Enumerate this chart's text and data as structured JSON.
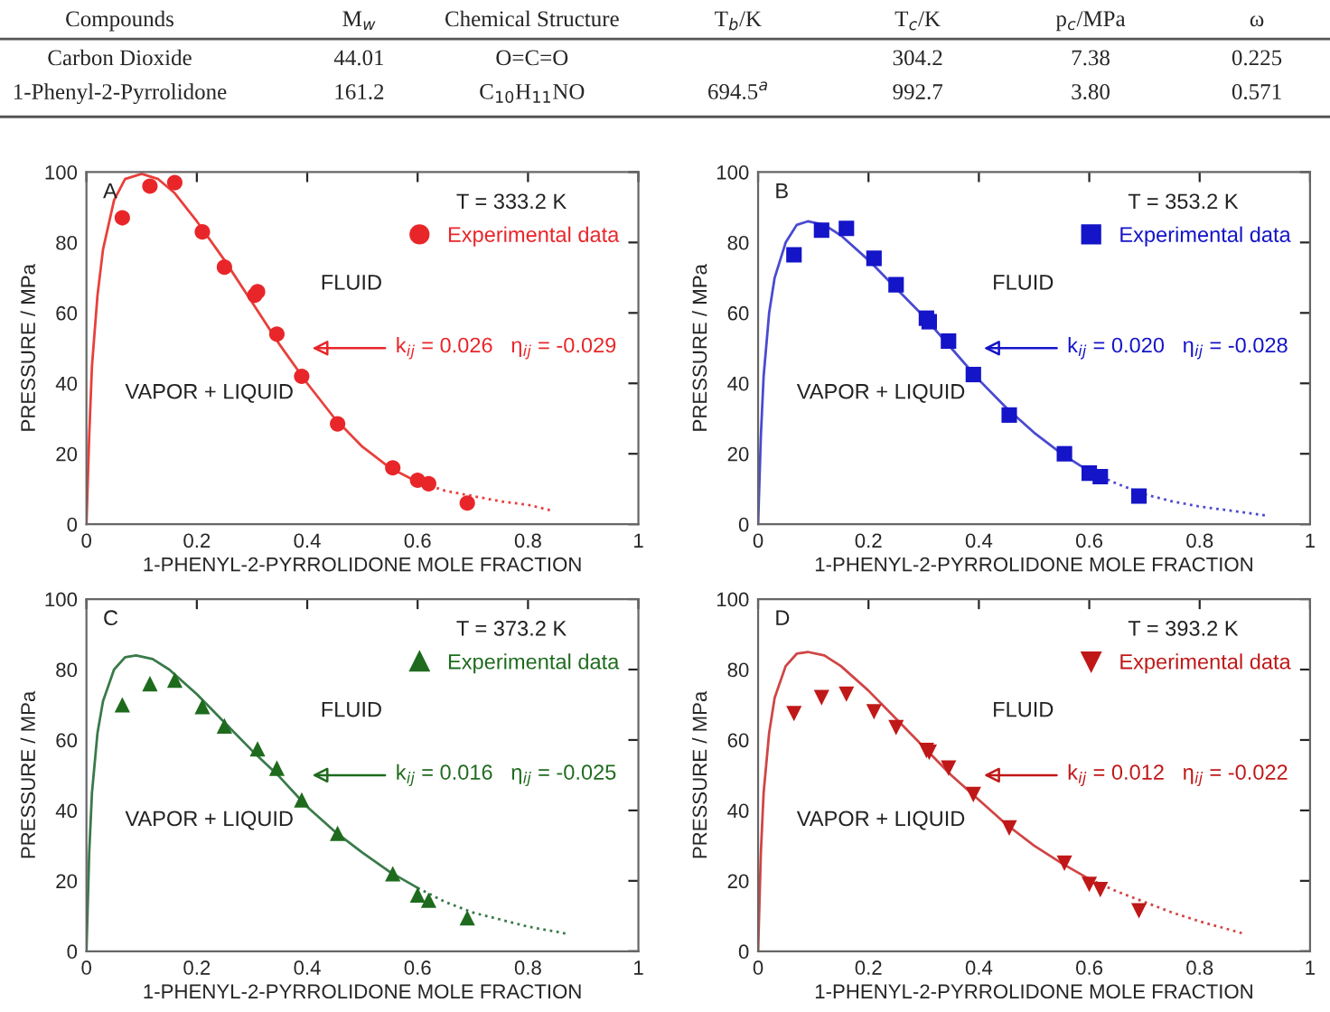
{
  "chart_data": [
    {
      "type": "other",
      "categories": [
        "Compounds",
        "M$_{w}$",
        "Chemical Structure",
        "T$_{b}$/K",
        "T$_{c}$/K",
        "p$_{c}$/MPa",
        "ω"
      ],
      "cell_labels": [
        [
          "Carbon Dioxide",
          "44.01",
          "O=C=O",
          null,
          "304.2",
          "7.38",
          "0.225"
        ],
        [
          "1-Phenyl-2-Pyrrolidone",
          "161.2",
          "C$_{10}$H$_{11}$NO",
          "694.5$^{a}$",
          "992.7",
          "3.80",
          "0.571"
        ]
      ]
    },
    {
      "type": "scatter",
      "xlabel": "1-PHENYL-2-PYRROLIDONE MOLE FRACTION",
      "ylabel": "PRESSURE / MPa",
      "xlim": [
        0,
        1
      ],
      "ylim": [
        0,
        100
      ],
      "xticks": [
        0,
        0.2,
        0.4,
        0.6,
        0.8,
        1
      ],
      "yticks": [
        0,
        20,
        40,
        60,
        80,
        100
      ],
      "grid": false,
      "legend": "top right",
      "annotations": [
        "A",
        "T = 333.2 K",
        "FLUID",
        "VAPOR + LIQUID",
        "k$_{ij}$ = 0.026   η$_{ij}$ = -0.029"
      ],
      "series": [
        {
          "name": "Experimental data",
          "type": "scatter",
          "marker": "circle",
          "color": "#e8262a",
          "x": [
            0.065,
            0.115,
            0.16,
            0.21,
            0.25,
            0.305,
            0.31,
            0.345,
            0.39,
            0.455,
            0.555,
            0.6,
            0.62,
            0.69
          ],
          "values": [
            87,
            96,
            97,
            83,
            73,
            65,
            66,
            54,
            42,
            28.5,
            16,
            12.5,
            11.5,
            6
          ]
        },
        {
          "type": "line",
          "line_style": "solid",
          "color": "#e8403c",
          "x": [
            0,
            0.005,
            0.01,
            0.02,
            0.03,
            0.05,
            0.07,
            0.1,
            0.13,
            0.16,
            0.2,
            0.25,
            0.3,
            0.35,
            0.4,
            0.45,
            0.5,
            0.55,
            0.6
          ],
          "values": [
            0,
            25,
            45,
            65,
            78,
            92,
            98,
            99.5,
            98,
            94,
            86,
            75,
            63,
            51,
            40,
            30,
            22,
            16,
            12
          ]
        },
        {
          "type": "line",
          "line_style": "dotted",
          "color": "#e8403c",
          "x": [
            0.6,
            0.65,
            0.7,
            0.75,
            0.8,
            0.84
          ],
          "values": [
            12,
            9.5,
            8,
            6.5,
            5.5,
            4
          ]
        }
      ]
    },
    {
      "type": "scatter",
      "xlabel": "1-PHENYL-2-PYRROLIDONE MOLE FRACTION",
      "ylabel": "PRESSURE / MPa",
      "xlim": [
        0,
        1
      ],
      "ylim": [
        0,
        100
      ],
      "xticks": [
        0,
        0.2,
        0.4,
        0.6,
        0.8,
        1
      ],
      "yticks": [
        0,
        20,
        40,
        60,
        80,
        100
      ],
      "grid": false,
      "legend": "top right",
      "annotations": [
        "B",
        "T = 353.2 K",
        "FLUID",
        "VAPOR + LIQUID",
        "k$_{ij}$ = 0.020   η$_{ij}$ = -0.028"
      ],
      "series": [
        {
          "name": "Experimental data",
          "type": "scatter",
          "marker": "square",
          "color": "#1414c8",
          "x": [
            0.065,
            0.115,
            0.16,
            0.21,
            0.25,
            0.305,
            0.31,
            0.345,
            0.39,
            0.455,
            0.555,
            0.6,
            0.62,
            0.69
          ],
          "values": [
            76.5,
            83.5,
            84,
            75.5,
            68,
            58.5,
            57.5,
            52,
            42.5,
            31,
            20,
            14.5,
            13.5,
            8
          ]
        },
        {
          "type": "line",
          "line_style": "solid",
          "color": "#4a4ad0",
          "x": [
            0,
            0.005,
            0.01,
            0.02,
            0.03,
            0.05,
            0.07,
            0.09,
            0.12,
            0.15,
            0.2,
            0.25,
            0.3,
            0.35,
            0.4,
            0.45,
            0.5,
            0.55,
            0.6
          ],
          "values": [
            0,
            25,
            42,
            60,
            70,
            80,
            85,
            86,
            85,
            82,
            75,
            67,
            59,
            50,
            41,
            33,
            26,
            20,
            15
          ]
        },
        {
          "type": "line",
          "line_style": "dotted",
          "color": "#4a4ad0",
          "x": [
            0.6,
            0.65,
            0.7,
            0.75,
            0.8,
            0.85,
            0.92
          ],
          "values": [
            15,
            11.5,
            8.5,
            6.5,
            5,
            4,
            2.5
          ]
        }
      ]
    },
    {
      "type": "scatter",
      "xlabel": "1-PHENYL-2-PYRROLIDONE MOLE FRACTION",
      "ylabel": "PRESSURE / MPa",
      "xlim": [
        0,
        1
      ],
      "ylim": [
        0,
        100
      ],
      "xticks": [
        0,
        0.2,
        0.4,
        0.6,
        0.8,
        1
      ],
      "yticks": [
        0,
        20,
        40,
        60,
        80,
        100
      ],
      "grid": false,
      "legend": "top right",
      "annotations": [
        "C",
        "T = 373.2 K",
        "FLUID",
        "VAPOR + LIQUID",
        "k$_{ij}$ = 0.016   η$_{ij}$ = -0.025"
      ],
      "series": [
        {
          "name": "Experimental data",
          "type": "scatter",
          "marker": "triangle",
          "color": "#1e6b1e",
          "x": [
            0.065,
            0.115,
            0.16,
            0.21,
            0.25,
            0.31,
            0.345,
            0.39,
            0.455,
            0.555,
            0.6,
            0.62,
            0.69
          ],
          "values": [
            70,
            76,
            77,
            69.5,
            64,
            57.5,
            52,
            43,
            33.5,
            22,
            16,
            14.5,
            9.5
          ]
        },
        {
          "type": "line",
          "line_style": "solid",
          "color": "#3a7a4a",
          "x": [
            0,
            0.005,
            0.01,
            0.02,
            0.03,
            0.05,
            0.07,
            0.09,
            0.12,
            0.15,
            0.2,
            0.25,
            0.3,
            0.35,
            0.4,
            0.45,
            0.5,
            0.55,
            0.6
          ],
          "values": [
            0,
            28,
            45,
            62,
            71,
            80,
            83.5,
            84,
            83,
            80,
            73,
            65,
            57,
            49.5,
            41,
            34,
            28,
            22.5,
            18
          ]
        },
        {
          "type": "line",
          "line_style": "dotted",
          "color": "#3a7a4a",
          "x": [
            0.6,
            0.65,
            0.7,
            0.75,
            0.8,
            0.87
          ],
          "values": [
            18,
            14,
            11,
            9,
            7,
            5
          ]
        }
      ]
    },
    {
      "type": "scatter",
      "xlabel": "1-PHENYL-2-PYRROLIDONE MOLE FRACTION",
      "ylabel": "PRESSURE / MPa",
      "xlim": [
        0,
        1
      ],
      "ylim": [
        0,
        100
      ],
      "xticks": [
        0,
        0.2,
        0.4,
        0.6,
        0.8,
        1
      ],
      "yticks": [
        0,
        20,
        40,
        60,
        80,
        100
      ],
      "grid": false,
      "legend": "top right",
      "annotations": [
        "D",
        "T = 393.2 K",
        "FLUID",
        "VAPOR + LIQUID",
        "k$_{ij}$ = 0.012   η$_{ij}$ = -0.022"
      ],
      "series": [
        {
          "name": "Experimental data",
          "type": "scatter",
          "marker": "triangle_down",
          "color": "#c01818",
          "x": [
            0.065,
            0.115,
            0.16,
            0.21,
            0.25,
            0.305,
            0.31,
            0.345,
            0.39,
            0.455,
            0.555,
            0.6,
            0.62,
            0.69
          ],
          "values": [
            67.5,
            72,
            73,
            68,
            63.5,
            57,
            56.5,
            52,
            44.5,
            35,
            25,
            19,
            17.5,
            11.5
          ]
        },
        {
          "type": "line",
          "line_style": "solid",
          "color": "#d04545",
          "x": [
            0,
            0.005,
            0.01,
            0.02,
            0.03,
            0.05,
            0.07,
            0.09,
            0.12,
            0.15,
            0.2,
            0.25,
            0.3,
            0.35,
            0.4,
            0.45,
            0.5,
            0.55,
            0.6
          ],
          "values": [
            0,
            28,
            45,
            62,
            72,
            81,
            84.5,
            85,
            84,
            81,
            74,
            66,
            58,
            50,
            43,
            36,
            30,
            25,
            20.5
          ]
        },
        {
          "type": "line",
          "line_style": "dotted",
          "color": "#d04545",
          "x": [
            0.6,
            0.65,
            0.7,
            0.75,
            0.8,
            0.88
          ],
          "values": [
            20.5,
            17,
            14,
            11,
            8.5,
            5
          ]
        }
      ]
    }
  ]
}
